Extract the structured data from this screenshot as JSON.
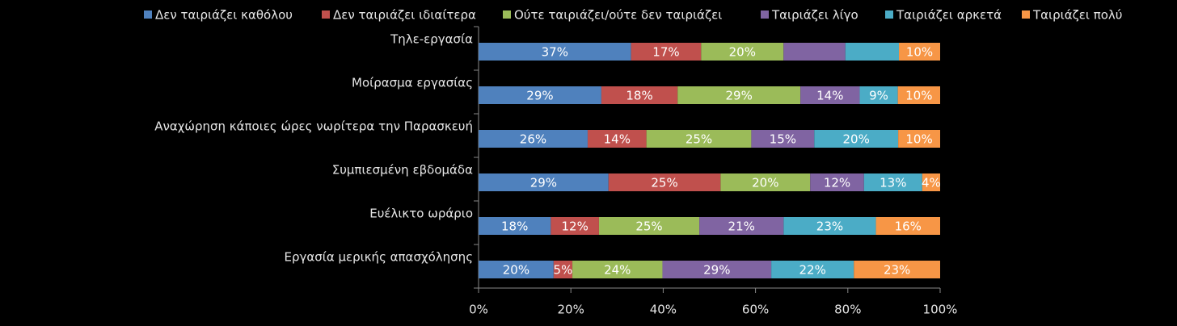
{
  "chart_data": {
    "type": "stacked-bar-100",
    "categories": [
      "Τηλε-εργασία",
      "Μοίρασμα εργασίας",
      "Αναχώρηση κάποιες ώρες νωρίτερα την Παρασκευή",
      "Συμπιεσμένη εβδομάδα",
      "Ευέλικτο ωράριο",
      "Εργασία μερικής απασχόλησης"
    ],
    "series": [
      {
        "name": "Δεν ταιριάζει καθόλου",
        "color": "#4f81bd",
        "values": [
          37,
          29,
          26,
          29,
          18,
          20
        ],
        "value_labels": [
          "37%",
          "29%",
          "26%",
          "29%",
          "18%",
          "20%"
        ]
      },
      {
        "name": "Δεν ταιριάζει ιδιαίτερα",
        "color": "#c0504d",
        "values": [
          17,
          18,
          14,
          25,
          12,
          5
        ],
        "value_labels": [
          "17%",
          "18%",
          "14%",
          "25%",
          "12%",
          "5%"
        ]
      },
      {
        "name": "Ούτε ταιριάζει/ούτε δεν ταιριάζει",
        "color": "#9bbb59",
        "values": [
          20,
          29,
          25,
          20,
          25,
          24
        ],
        "value_labels": [
          "20%",
          "29%",
          "25%",
          "20%",
          "25%",
          "24%"
        ]
      },
      {
        "name": "Ταιριάζει λίγο",
        "color": "#8064a2",
        "values": [
          15,
          14,
          15,
          12,
          21,
          29
        ],
        "value_labels": [
          null,
          "14%",
          "15%",
          "12%",
          "21%",
          "29%"
        ]
      },
      {
        "name": "Ταιριάζει αρκετά",
        "color": "#4bacc6",
        "values": [
          13,
          9,
          20,
          13,
          23,
          22
        ],
        "value_labels": [
          null,
          "9%",
          "20%",
          "13%",
          "23%",
          "22%"
        ]
      },
      {
        "name": "Ταιριάζει πολύ",
        "color": "#f79646",
        "values": [
          10,
          10,
          10,
          4,
          16,
          23
        ],
        "value_labels": [
          "10%",
          "10%",
          "10%",
          "4%",
          "16%",
          "23%"
        ]
      }
    ],
    "xlim": [
      0,
      100
    ],
    "xticks": [
      {
        "value": 0,
        "label": "0%"
      },
      {
        "value": 20,
        "label": "20%"
      },
      {
        "value": 40,
        "label": "40%"
      },
      {
        "value": 60,
        "label": "60%"
      },
      {
        "value": 80,
        "label": "80%"
      },
      {
        "value": 100,
        "label": "100%"
      }
    ],
    "legend": "top"
  }
}
